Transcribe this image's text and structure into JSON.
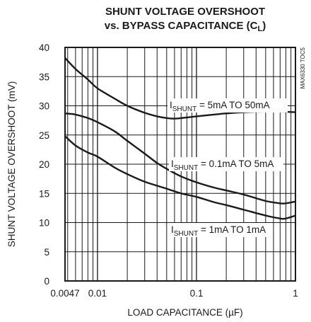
{
  "chart_data": {
    "type": "line",
    "title_line1": "SHUNT VOLTAGE OVERSHOOT",
    "title_line2_main": "vs. BYPASS CAPACITANCE (C",
    "title_line2_sub": "L",
    "title_line2_end": ")",
    "xlabel_main": "LOAD CAPACITANCE (",
    "xlabel_mu": "µ",
    "xlabel_end": "F)",
    "ylabel": "SHUNT VOLTAGE OVERSHOOT (mV)",
    "side_label": "MAX6330 TOC5",
    "x_scale": "log",
    "xlim": [
      0.0047,
      1
    ],
    "ylim": [
      0,
      40
    ],
    "x_ticks": [
      {
        "value": 0.0047,
        "label": "0.0047"
      },
      {
        "value": 0.01,
        "label": "0.01"
      },
      {
        "value": 0.1,
        "label": "0.1"
      },
      {
        "value": 1,
        "label": "1"
      }
    ],
    "y_ticks": [
      {
        "value": 0,
        "label": "0"
      },
      {
        "value": 5,
        "label": "5"
      },
      {
        "value": 10,
        "label": "10"
      },
      {
        "value": 15,
        "label": "15"
      },
      {
        "value": 20,
        "label": "20"
      },
      {
        "value": 25,
        "label": "25"
      },
      {
        "value": 30,
        "label": "30"
      },
      {
        "value": 35,
        "label": "35"
      },
      {
        "value": 40,
        "label": "40"
      }
    ],
    "grid": true,
    "series": [
      {
        "label_prefix": "I",
        "label_sub": "SHUNT",
        "label_text": " = 5mA TO 50mA",
        "x": [
          0.0047,
          0.006,
          0.008,
          0.01,
          0.015,
          0.02,
          0.03,
          0.04,
          0.05,
          0.06,
          0.08,
          0.1,
          0.15,
          0.2,
          0.3,
          0.5,
          0.7,
          1
        ],
        "values": [
          38.2,
          36.3,
          34.5,
          33.0,
          31.2,
          30.0,
          28.8,
          28.2,
          27.9,
          27.8,
          28.0,
          28.2,
          28.5,
          28.7,
          28.9,
          29.0,
          29.0,
          28.9
        ]
      },
      {
        "label_prefix": "I",
        "label_sub": "SHUNT",
        "label_text": " = 0.1mA TO 5mA",
        "x": [
          0.0047,
          0.006,
          0.008,
          0.01,
          0.015,
          0.02,
          0.03,
          0.04,
          0.05,
          0.07,
          0.1,
          0.15,
          0.2,
          0.3,
          0.5,
          0.7,
          0.8,
          1
        ],
        "values": [
          28.7,
          28.5,
          27.9,
          27.2,
          25.6,
          24.0,
          21.8,
          20.2,
          19.2,
          17.9,
          16.9,
          16.0,
          15.5,
          14.8,
          13.7,
          13.3,
          13.3,
          13.6
        ]
      },
      {
        "label_prefix": "I",
        "label_sub": "SHUNT",
        "label_text": " = 1mA TO 1mA",
        "x": [
          0.0047,
          0.006,
          0.008,
          0.01,
          0.015,
          0.02,
          0.03,
          0.05,
          0.07,
          0.1,
          0.15,
          0.2,
          0.3,
          0.5,
          0.7,
          0.8,
          1
        ],
        "values": [
          24.8,
          23.2,
          22.0,
          21.3,
          19.4,
          18.3,
          17.0,
          15.8,
          15.0,
          14.4,
          13.5,
          13.0,
          12.2,
          11.2,
          10.7,
          10.7,
          11.2
        ]
      }
    ]
  }
}
